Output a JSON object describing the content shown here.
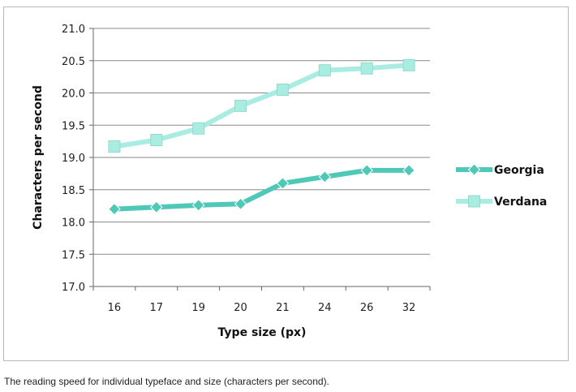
{
  "caption": "The reading speed for individual typeface and size (characters per second).",
  "chart_data": {
    "type": "line",
    "categories": [
      "16",
      "17",
      "19",
      "20",
      "21",
      "24",
      "26",
      "32"
    ],
    "xlabel": "Type size (px)",
    "ylabel": "Characters per second",
    "ylim": [
      17.0,
      21.0
    ],
    "yticks": [
      "17.0",
      "17.5",
      "18.0",
      "18.5",
      "19.0",
      "19.5",
      "20.0",
      "20.5",
      "21.0"
    ],
    "grid": true,
    "legend_position": "right",
    "series": [
      {
        "name": "Georgia",
        "values": [
          18.2,
          18.23,
          18.26,
          18.28,
          18.6,
          18.7,
          18.8,
          18.8
        ],
        "color": "#4fc8b7",
        "marker": "diamond"
      },
      {
        "name": "Verdana",
        "values": [
          19.17,
          19.27,
          19.45,
          19.8,
          20.05,
          20.35,
          20.38,
          20.43
        ],
        "color": "#a9ece2",
        "marker": "square"
      }
    ]
  }
}
